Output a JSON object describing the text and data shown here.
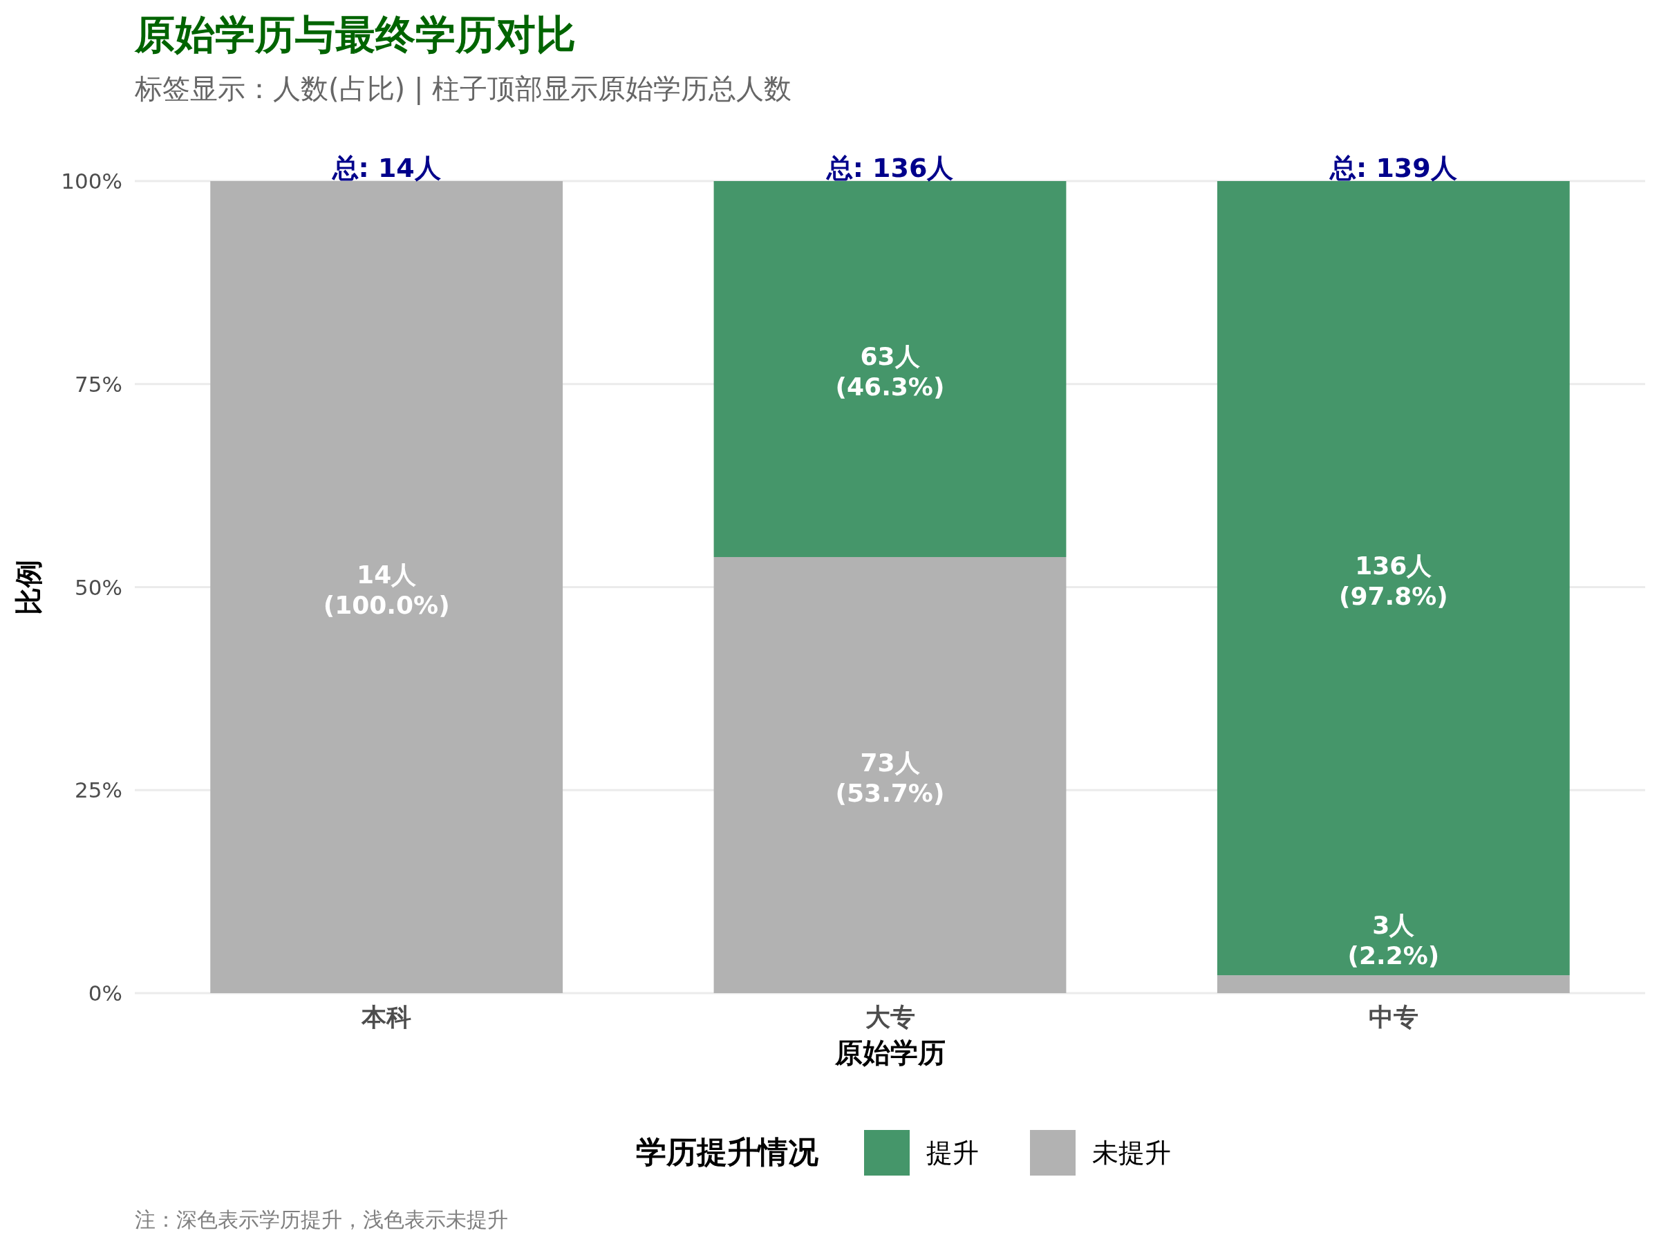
{
  "chart_data": {
    "type": "bar",
    "title": "原始学历与最终学历对比",
    "subtitle": "标签显示：人数(占比) | 柱子顶部显示原始学历总人数",
    "xlabel": "原始学历",
    "ylabel": "比例",
    "legend_title": "学历提升情况",
    "annotations": [
      {
        "text": "总: 14人",
        "x": "本科",
        "y": 100
      },
      {
        "text": "总: 136人",
        "x": "大专",
        "y": 100
      },
      {
        "text": "总: 139人",
        "x": "中专",
        "y": 100
      },
      "注：深色表示学历提升，浅色表示未提升"
    ],
    "categories": [
      "本科",
      "大专",
      "中专"
    ],
    "stacked": true,
    "series": [
      {
        "name": "未提升",
        "color": "#b2b2b2",
        "values": [
          100,
          53.7,
          2.2
        ],
        "value_labels": [
          "14人\n(100.0%)",
          "73人\n(53.7%)",
          "3人\n(2.2%)"
        ]
      },
      {
        "name": "提升",
        "color": "#45966a",
        "values": [
          0,
          46.3,
          97.8
        ],
        "value_labels": [
          null,
          "63人\n(46.3%)",
          "136人\n(97.8%)"
        ]
      }
    ],
    "ylim": [
      0,
      100
    ],
    "yticks": [
      {
        "value": 0,
        "label": "0%"
      },
      {
        "value": 25,
        "label": "25%"
      },
      {
        "value": 50,
        "label": "50%"
      },
      {
        "value": 75,
        "label": "75%"
      },
      {
        "value": 100,
        "label": "100%"
      }
    ],
    "grid": "y",
    "legend": "bottom"
  }
}
